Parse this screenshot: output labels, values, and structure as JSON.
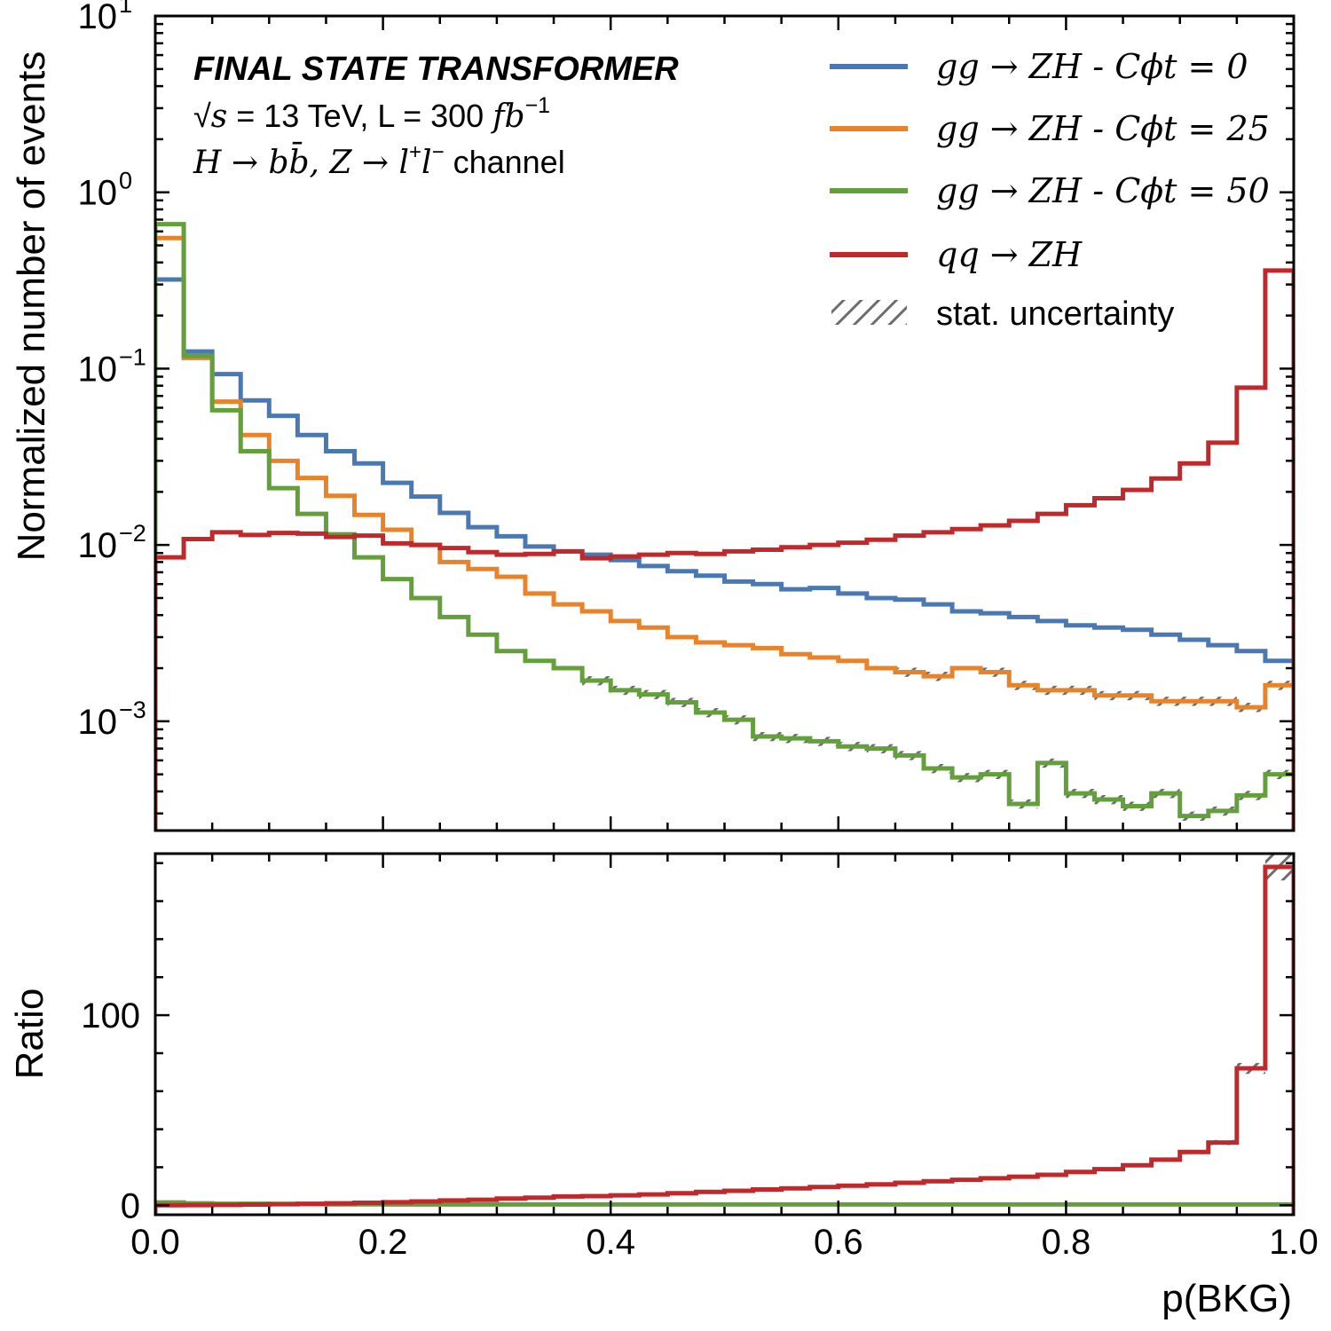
{
  "chart_data": [
    {
      "type": "line",
      "title": "",
      "xlabel": "",
      "ylabel": "Normalized number of events",
      "yscale": "log",
      "ylim": [
        0.00024,
        10
      ],
      "xlim": [
        0,
        1
      ],
      "grid": false,
      "legend_placement": "top-right",
      "y_tick_bases": [
        "10",
        "10",
        "10",
        "10",
        "10"
      ],
      "y_tick_exponents": [
        "1",
        "0",
        "−1",
        "−2",
        "−3"
      ],
      "y_tick_values": [
        10,
        1,
        0.1,
        0.01,
        0.001
      ],
      "annotations": {
        "experiment": "FINAL STATE TRANSFORMER",
        "energy_sqrt": "√",
        "energy_s": "s",
        "energy_rest": " = 13 TeV, L = 300 ",
        "energy_unit": "fb",
        "energy_exp": "−1",
        "channel_h": "H",
        "channel_bb": " → bb̄, ",
        "channel_z": "Z",
        "channel_ll": " → l",
        "channel_plus": "+",
        "channel_l2": "l",
        "channel_minus": "−",
        "channel_word": " channel"
      },
      "x_edges": [
        0.0,
        0.025,
        0.05,
        0.075,
        0.1,
        0.125,
        0.15,
        0.175,
        0.2,
        0.225,
        0.25,
        0.275,
        0.3,
        0.325,
        0.35,
        0.375,
        0.4,
        0.425,
        0.45,
        0.475,
        0.5,
        0.525,
        0.55,
        0.575,
        0.6,
        0.625,
        0.65,
        0.675,
        0.7,
        0.725,
        0.75,
        0.775,
        0.8,
        0.825,
        0.85,
        0.875,
        0.9,
        0.925,
        0.95,
        0.975,
        1.0
      ],
      "series": [
        {
          "name": "gg → ZH - Cϕt = 0",
          "color": "#4a78b3",
          "values": [
            0.32,
            0.125,
            0.093,
            0.066,
            0.054,
            0.042,
            0.034,
            0.029,
            0.0225,
            0.0188,
            0.0152,
            0.0126,
            0.0112,
            0.0098,
            0.0092,
            0.0088,
            0.0082,
            0.0076,
            0.0071,
            0.0067,
            0.0062,
            0.006,
            0.0056,
            0.0057,
            0.0053,
            0.005,
            0.0049,
            0.0046,
            0.0042,
            0.0041,
            0.0039,
            0.0037,
            0.0035,
            0.0034,
            0.0033,
            0.0031,
            0.0029,
            0.0027,
            0.0025,
            0.0022
          ]
        },
        {
          "name": "gg → ZH - Cϕt = 25",
          "color": "#e8832a",
          "values": [
            0.55,
            0.115,
            0.065,
            0.042,
            0.03,
            0.024,
            0.019,
            0.0148,
            0.0122,
            0.01,
            0.008,
            0.0073,
            0.0066,
            0.0053,
            0.0046,
            0.0042,
            0.0037,
            0.0034,
            0.003,
            0.0028,
            0.0027,
            0.0026,
            0.0024,
            0.0023,
            0.0022,
            0.002,
            0.0019,
            0.0018,
            0.002,
            0.0019,
            0.0016,
            0.0015,
            0.0015,
            0.0014,
            0.0014,
            0.0013,
            0.0013,
            0.0013,
            0.0012,
            0.0016
          ]
        },
        {
          "name": "gg → ZH - Cϕt = 50",
          "color": "#63a03c",
          "values": [
            0.66,
            0.118,
            0.058,
            0.034,
            0.021,
            0.015,
            0.0115,
            0.0085,
            0.0064,
            0.005,
            0.0039,
            0.0031,
            0.0025,
            0.0022,
            0.002,
            0.0017,
            0.0015,
            0.00142,
            0.00128,
            0.00112,
            0.00102,
            0.00082,
            0.0008,
            0.00077,
            0.00072,
            0.0007,
            0.00064,
            0.00054,
            0.00048,
            0.0005,
            0.00034,
            0.00058,
            0.00039,
            0.00036,
            0.00033,
            0.00039,
            0.00029,
            0.00031,
            0.00038,
            0.0005
          ]
        },
        {
          "name": "qq → ZH",
          "color": "#c0292c",
          "values": [
            0.0085,
            0.0108,
            0.0118,
            0.0114,
            0.0117,
            0.0116,
            0.0111,
            0.0113,
            0.0102,
            0.01,
            0.0096,
            0.0091,
            0.0088,
            0.0089,
            0.0092,
            0.0084,
            0.0086,
            0.0088,
            0.009,
            0.0089,
            0.0092,
            0.0094,
            0.0097,
            0.01,
            0.0103,
            0.0107,
            0.0113,
            0.0118,
            0.0123,
            0.0129,
            0.0137,
            0.015,
            0.0168,
            0.0184,
            0.0205,
            0.0238,
            0.029,
            0.038,
            0.078,
            0.36
          ]
        }
      ],
      "legend_extra": "stat. uncertainty"
    },
    {
      "type": "line",
      "title": "",
      "xlabel": "p(BKG)",
      "ylabel": "Ratio",
      "ylim": [
        -5,
        185
      ],
      "xlim": [
        0,
        1
      ],
      "x_tick_labels": [
        "0.0",
        "0.2",
        "0.4",
        "0.6",
        "0.8",
        "1.0"
      ],
      "x_tick_values": [
        0.0,
        0.2,
        0.4,
        0.6,
        0.8,
        1.0
      ],
      "y_tick_labels": [
        "0",
        "100"
      ],
      "y_tick_values": [
        0,
        100
      ],
      "series": [
        {
          "name": "gg → ZH - Cϕt = 50",
          "color": "#63a03c",
          "values": [
            1.5,
            1,
            0.8,
            0.8,
            0.7,
            0.6,
            0.5,
            0.5,
            0.4,
            0.4,
            0.4,
            0.4,
            0.4,
            0.4,
            0.4,
            0.4,
            0.4,
            0.4,
            0.4,
            0.4,
            0.4,
            0.4,
            0.4,
            0.4,
            0.4,
            0.4,
            0.4,
            0.4,
            0.4,
            0.4,
            0.4,
            0.4,
            0.4,
            0.4,
            0.4,
            0.4,
            0.4,
            0.4,
            0.4,
            0.4
          ]
        },
        {
          "name": "qq → ZH",
          "color": "#c0292c",
          "values": [
            0.03,
            0.09,
            0.18,
            0.34,
            0.55,
            0.77,
            1.0,
            1.3,
            1.6,
            2.0,
            2.5,
            2.9,
            3.5,
            4.0,
            4.6,
            4.8,
            5.2,
            5.7,
            6.3,
            7.0,
            7.6,
            8.3,
            8.9,
            9.6,
            10.3,
            11.0,
            11.8,
            12.6,
            13.4,
            14.2,
            15.0,
            16.0,
            17.5,
            19.0,
            21.0,
            24.0,
            28.0,
            33.0,
            72.0,
            178.0
          ]
        }
      ]
    }
  ]
}
